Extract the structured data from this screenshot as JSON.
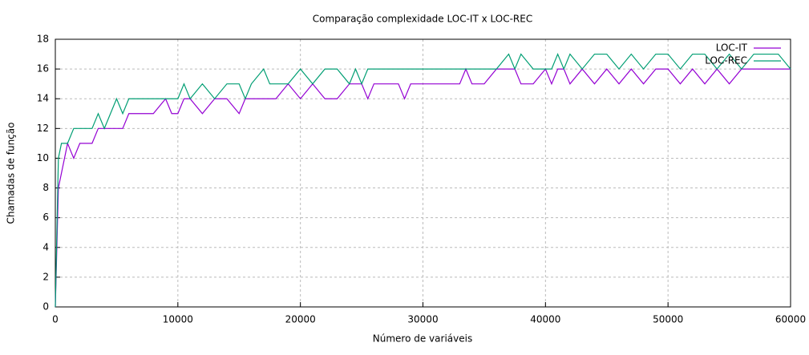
{
  "chart_data": {
    "type": "line",
    "title": "Comparação complexidade LOC-IT x LOC-REC",
    "x_label": "Número de variáveis",
    "y_label": "Chamadas de função",
    "x": [
      0,
      250,
      500,
      1000,
      1500,
      2000,
      2500,
      3000,
      3500,
      4000,
      4500,
      5000,
      5500,
      6000,
      7000,
      8000,
      9000,
      9500,
      10000,
      10500,
      11000,
      12000,
      13000,
      14000,
      15000,
      15500,
      16000,
      17000,
      17500,
      18000,
      19000,
      20000,
      21000,
      22000,
      23000,
      24000,
      24500,
      25000,
      25500,
      26000,
      27000,
      28000,
      28500,
      29000,
      30000,
      31000,
      32000,
      33000,
      33500,
      34000,
      35000,
      36000,
      37000,
      37500,
      38000,
      39000,
      40000,
      40500,
      41000,
      41500,
      42000,
      43000,
      44000,
      45000,
      46000,
      47000,
      48000,
      49000,
      50000,
      51000,
      52000,
      53000,
      54000,
      55000,
      56000,
      57000,
      58000,
      59000,
      60000
    ],
    "series": [
      {
        "name": "LOC-IT",
        "color": "#9400d3",
        "values": [
          0,
          8,
          9,
          11,
          10,
          11,
          11,
          11,
          12,
          12,
          12,
          12,
          12,
          13,
          13,
          13,
          14,
          13,
          13,
          14,
          14,
          13,
          14,
          14,
          13,
          14,
          14,
          14,
          14,
          14,
          15,
          14,
          15,
          14,
          14,
          15,
          15,
          15,
          14,
          15,
          15,
          15,
          14,
          15,
          15,
          15,
          15,
          15,
          16,
          15,
          15,
          16,
          16,
          16,
          15,
          15,
          16,
          15,
          16,
          16,
          15,
          16,
          15,
          16,
          15,
          16,
          15,
          16,
          16,
          15,
          16,
          15,
          16,
          15,
          16,
          16,
          16,
          16,
          16
        ]
      },
      {
        "name": "LOC-REC",
        "color": "#009e73",
        "values": [
          0,
          10,
          11,
          11,
          12,
          12,
          12,
          12,
          13,
          12,
          13,
          14,
          13,
          14,
          14,
          14,
          14,
          14,
          14,
          15,
          14,
          15,
          14,
          15,
          15,
          14,
          15,
          16,
          15,
          15,
          15,
          16,
          15,
          16,
          16,
          15,
          16,
          15,
          16,
          16,
          16,
          16,
          16,
          16,
          16,
          16,
          16,
          16,
          16,
          16,
          16,
          16,
          17,
          16,
          17,
          16,
          16,
          16,
          17,
          16,
          17,
          16,
          17,
          17,
          16,
          17,
          16,
          17,
          17,
          16,
          17,
          17,
          16,
          17,
          16,
          17,
          17,
          17,
          16
        ]
      }
    ],
    "xlim": [
      0,
      60000
    ],
    "xticks": [
      0,
      10000,
      20000,
      30000,
      40000,
      50000,
      60000
    ],
    "ylim": [
      0,
      18
    ],
    "yticks": [
      0,
      2,
      4,
      6,
      8,
      10,
      12,
      14,
      16,
      18
    ],
    "grid": true,
    "legend": "top-right"
  }
}
